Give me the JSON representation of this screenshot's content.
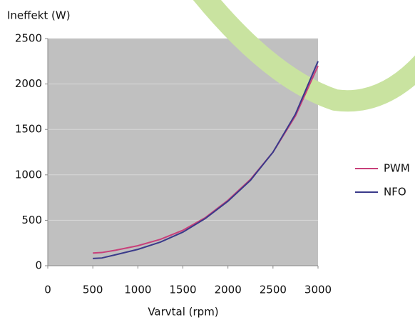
{
  "chart_data": {
    "type": "line",
    "ylabel": "Ineffekt (W)",
    "xlabel": "Varvtal (rpm)",
    "x": [
      500,
      600,
      750,
      1000,
      1250,
      1500,
      1750,
      2000,
      2250,
      2500,
      2750,
      3000
    ],
    "series": [
      {
        "name": "PWM",
        "color": "#c8407a",
        "values": [
          140,
          145,
          170,
          220,
          290,
          390,
          530,
          720,
          950,
          1250,
          1650,
          2200
        ]
      },
      {
        "name": "NFO",
        "color": "#3a3a8a",
        "values": [
          80,
          85,
          120,
          180,
          260,
          370,
          520,
          710,
          940,
          1250,
          1670,
          2250
        ]
      }
    ],
    "xlim": [
      0,
      3000
    ],
    "xticks": [
      0,
      500,
      1000,
      1500,
      2000,
      2500,
      3000
    ],
    "ylim": [
      0,
      2500
    ],
    "yticks": [
      0,
      500,
      1000,
      1500,
      2000,
      2500
    ],
    "grid": true,
    "legend": "right"
  }
}
